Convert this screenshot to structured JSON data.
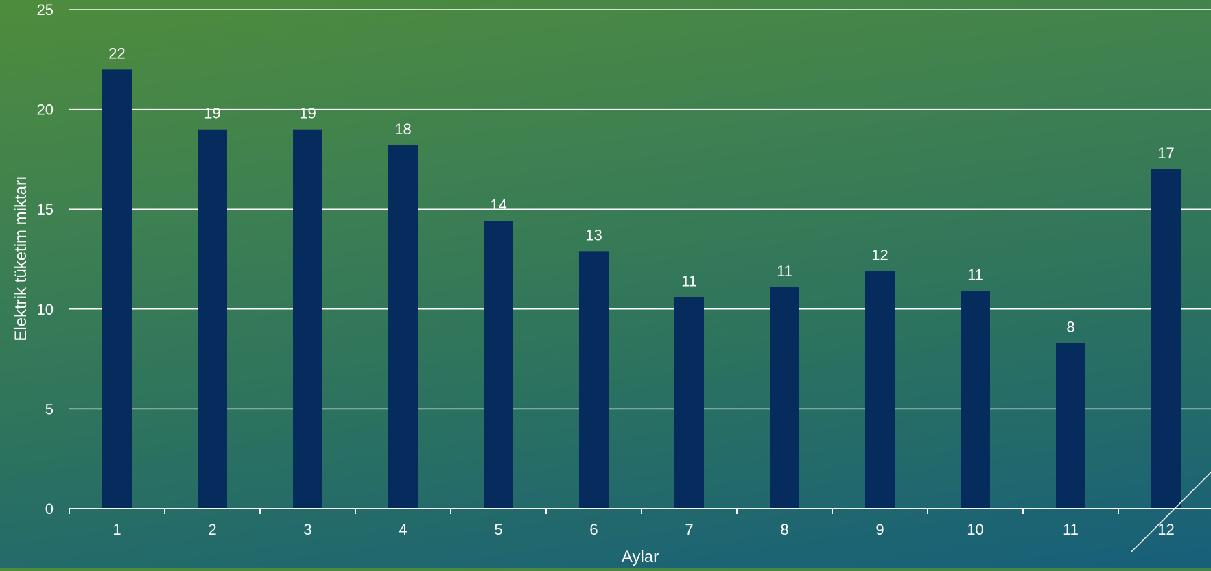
{
  "chart_data": {
    "type": "bar",
    "title": "",
    "xlabel": "Aylar",
    "ylabel": "Elektrik tüketim miktarı",
    "categories": [
      "1",
      "2",
      "3",
      "4",
      "5",
      "6",
      "7",
      "8",
      "9",
      "10",
      "11",
      "12"
    ],
    "values": [
      22,
      19,
      19,
      18.2,
      14.4,
      12.9,
      10.6,
      11.1,
      11.9,
      10.9,
      8.3,
      17
    ],
    "data_labels": [
      "22",
      "19",
      "19",
      "18",
      "14",
      "13",
      "11",
      "11",
      "12",
      "11",
      "8",
      "17"
    ],
    "ylim": [
      0,
      25
    ],
    "yticks": [
      "0",
      "5",
      "10",
      "15",
      "20",
      "25"
    ],
    "grid": true,
    "colors": {
      "bar": "#062c5e",
      "text": "#ffffff",
      "grid": "#ffffff"
    }
  }
}
